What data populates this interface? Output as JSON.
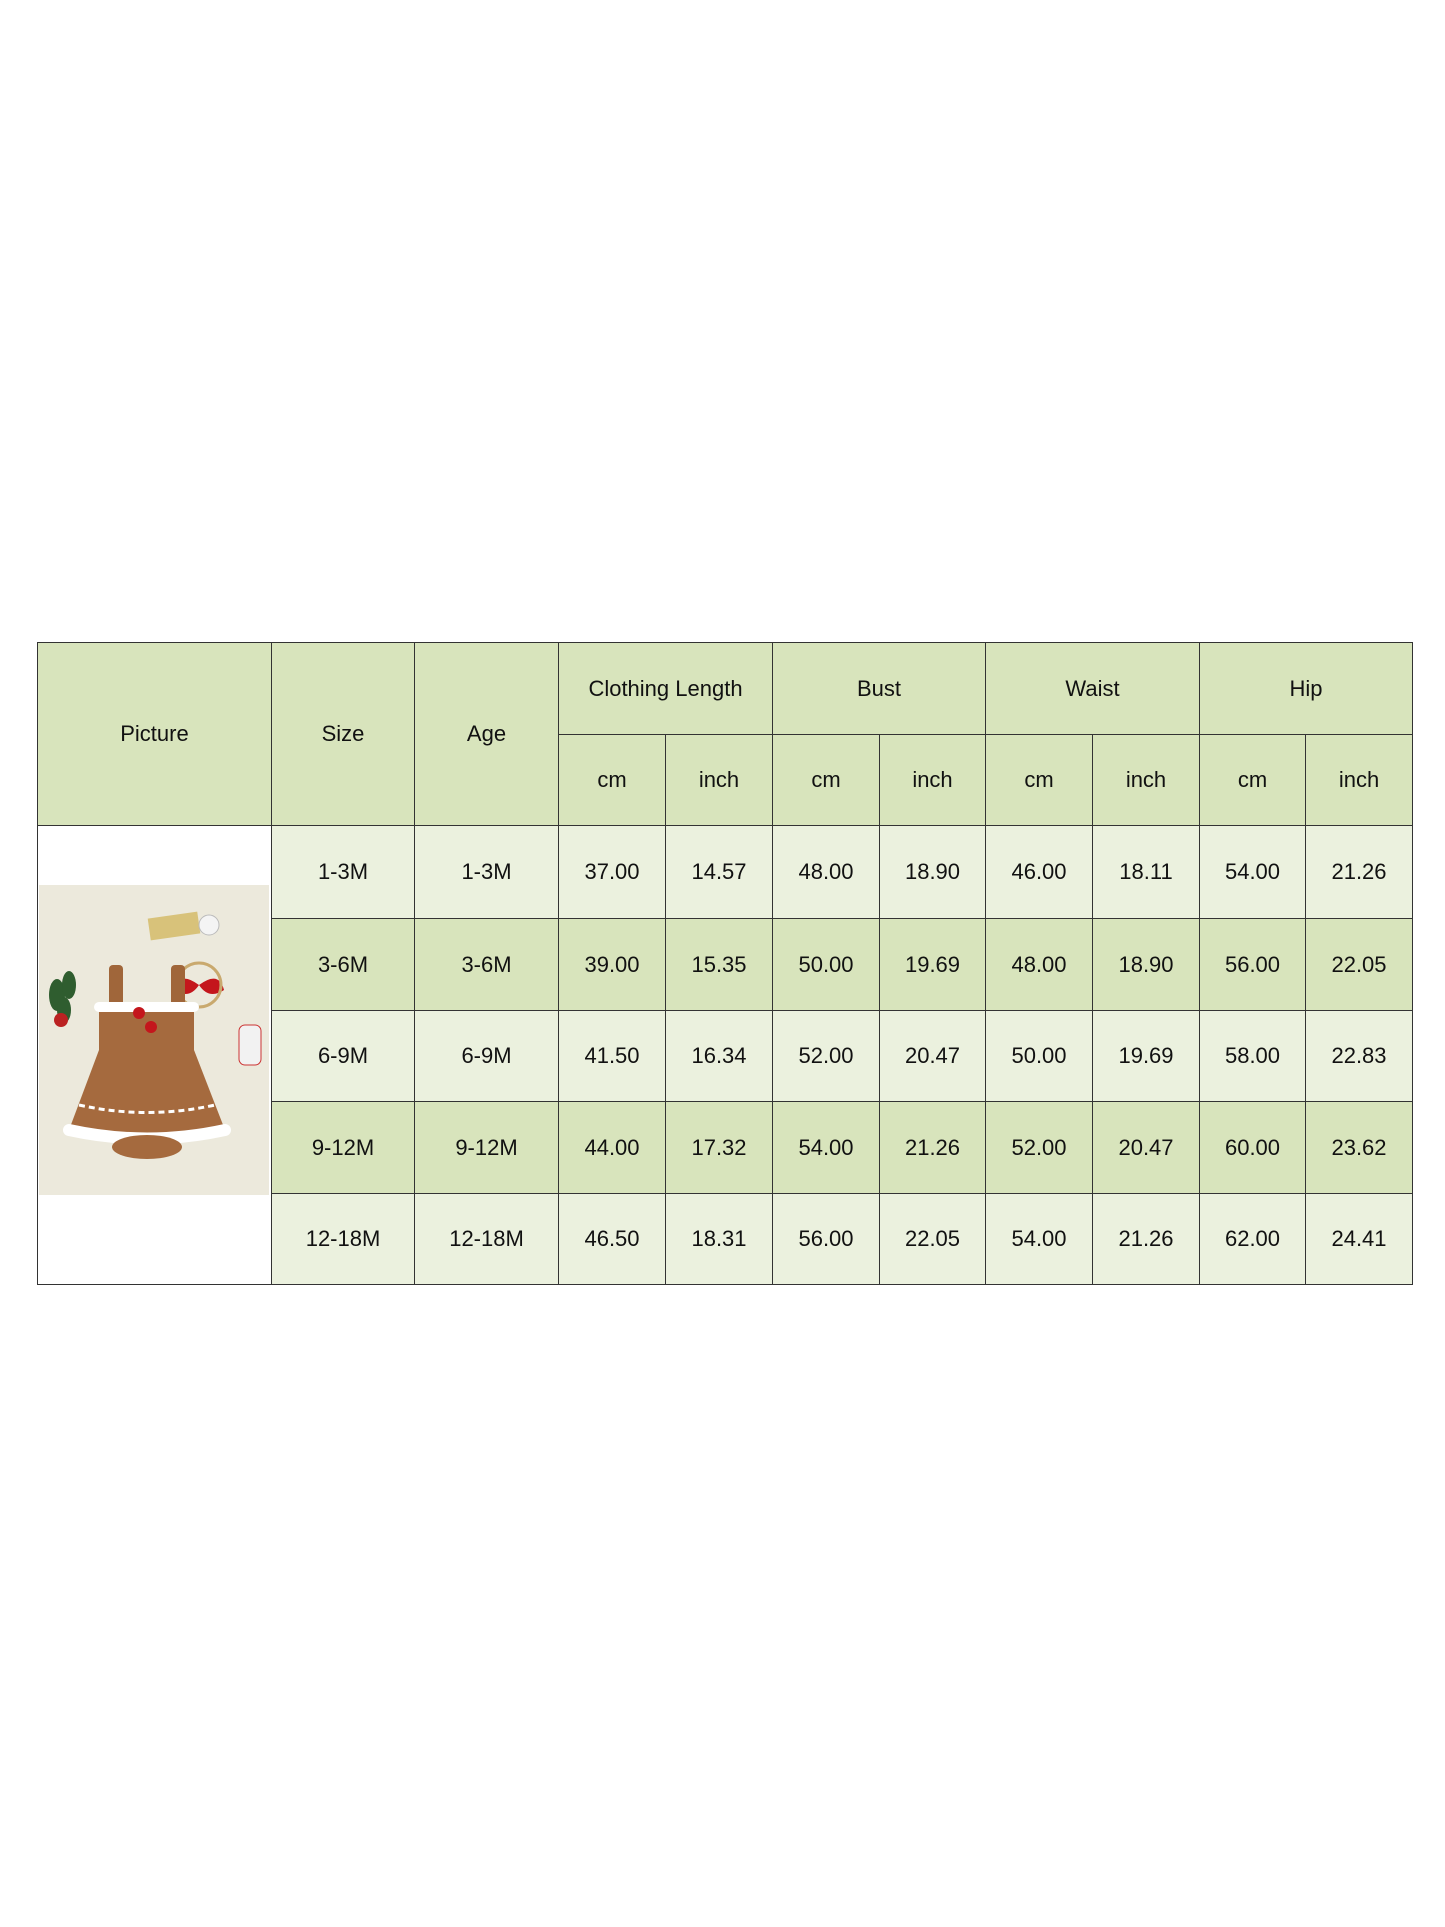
{
  "table": {
    "header": {
      "picture": "Picture",
      "size": "Size",
      "age": "Age",
      "groups": [
        "Clothing Length",
        "Bust",
        "Waist",
        "Hip"
      ],
      "units": [
        "cm",
        "inch",
        "cm",
        "inch",
        "cm",
        "inch",
        "cm",
        "inch"
      ]
    },
    "rows": [
      [
        "1-3M",
        "1-3M",
        "37.00",
        "14.57",
        "48.00",
        "18.90",
        "46.00",
        "18.11",
        "54.00",
        "21.26"
      ],
      [
        "3-6M",
        "3-6M",
        "39.00",
        "15.35",
        "50.00",
        "19.69",
        "48.00",
        "18.90",
        "56.00",
        "22.05"
      ],
      [
        "6-9M",
        "6-9M",
        "41.50",
        "16.34",
        "52.00",
        "20.47",
        "50.00",
        "19.69",
        "58.00",
        "22.83"
      ],
      [
        "9-12M",
        "9-12M",
        "44.00",
        "17.32",
        "54.00",
        "21.26",
        "52.00",
        "20.47",
        "60.00",
        "23.62"
      ],
      [
        "12-18M",
        "12-18M",
        "46.50",
        "18.31",
        "56.00",
        "22.05",
        "54.00",
        "21.26",
        "62.00",
        "24.41"
      ]
    ]
  }
}
